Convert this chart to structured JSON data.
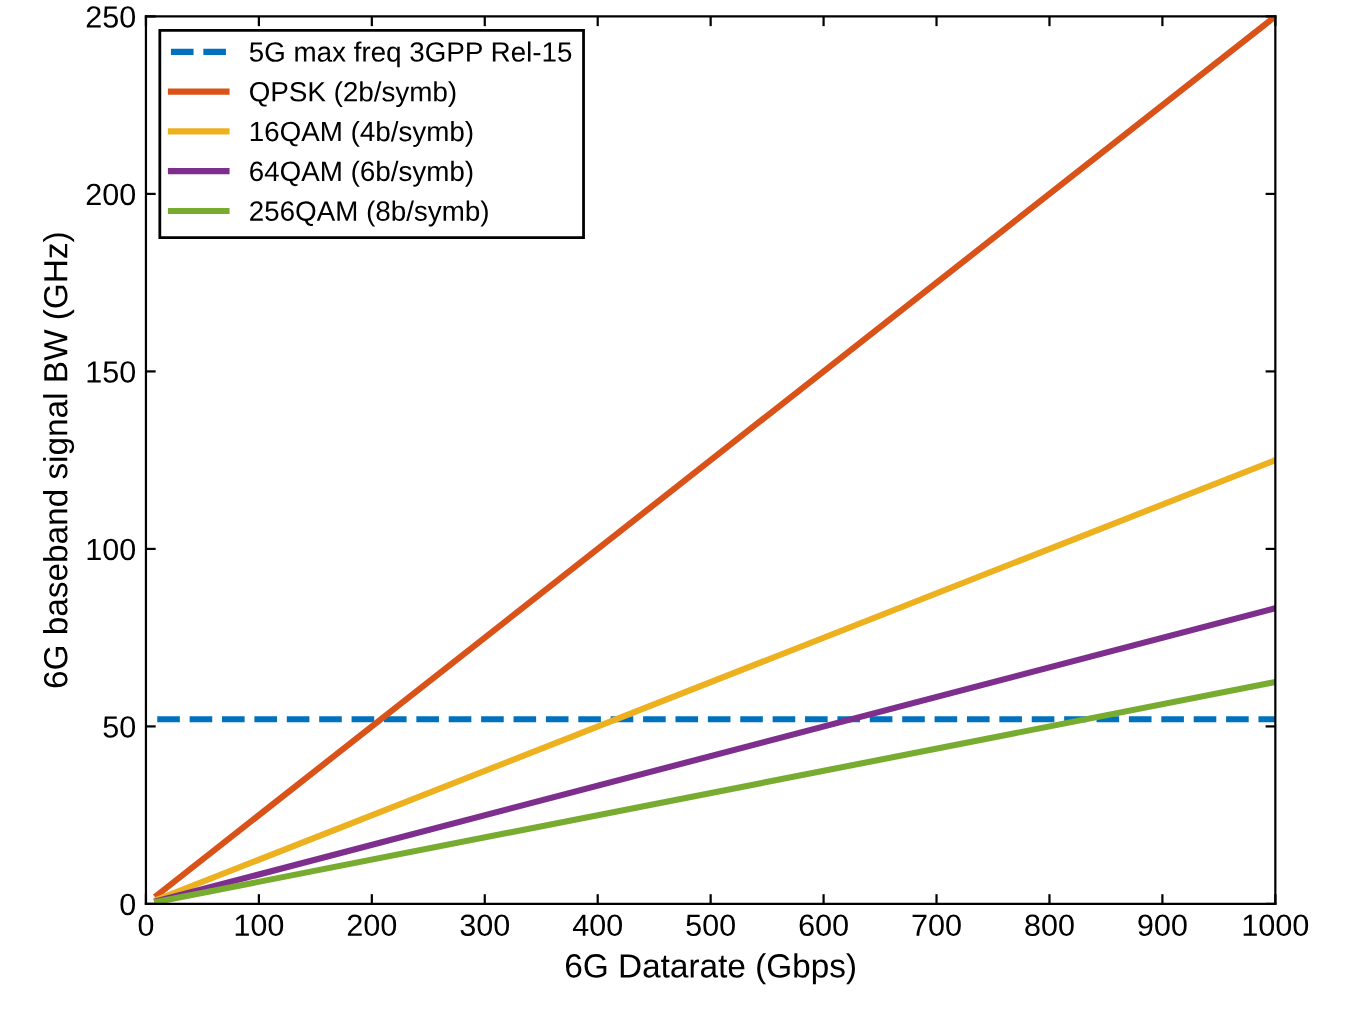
{
  "chart_data": {
    "type": "line",
    "xlabel": "6G Datarate (Gbps)",
    "ylabel": "6G baseband signal BW (GHz)",
    "xlim": [
      0,
      1000
    ],
    "ylim": [
      0,
      250
    ],
    "xticks": [
      0,
      100,
      200,
      300,
      400,
      500,
      600,
      700,
      800,
      900,
      1000
    ],
    "yticks": [
      0,
      50,
      100,
      150,
      200,
      250
    ],
    "grid": false,
    "legend": "top left",
    "line_style": "solid",
    "marker": "none",
    "x": [
      10,
      1000
    ],
    "series": [
      {
        "name": "5G max freq 3GPP Rel-15",
        "color": "#0072bd",
        "line_style": "dashed",
        "values": [
          52,
          52
        ]
      },
      {
        "name": "QPSK (2b/symb)",
        "color": "#d95319",
        "values": [
          2.5,
          250
        ]
      },
      {
        "name": "16QAM (4b/symb)",
        "color": "#edb120",
        "values": [
          1.2,
          125
        ]
      },
      {
        "name": "64QAM (6b/symb)",
        "color": "#7e2f8e",
        "values": [
          0.8,
          83.3
        ]
      },
      {
        "name": "256QAM (8b/symb)",
        "color": "#77ac30",
        "values": [
          0.6,
          62.5
        ]
      }
    ]
  }
}
